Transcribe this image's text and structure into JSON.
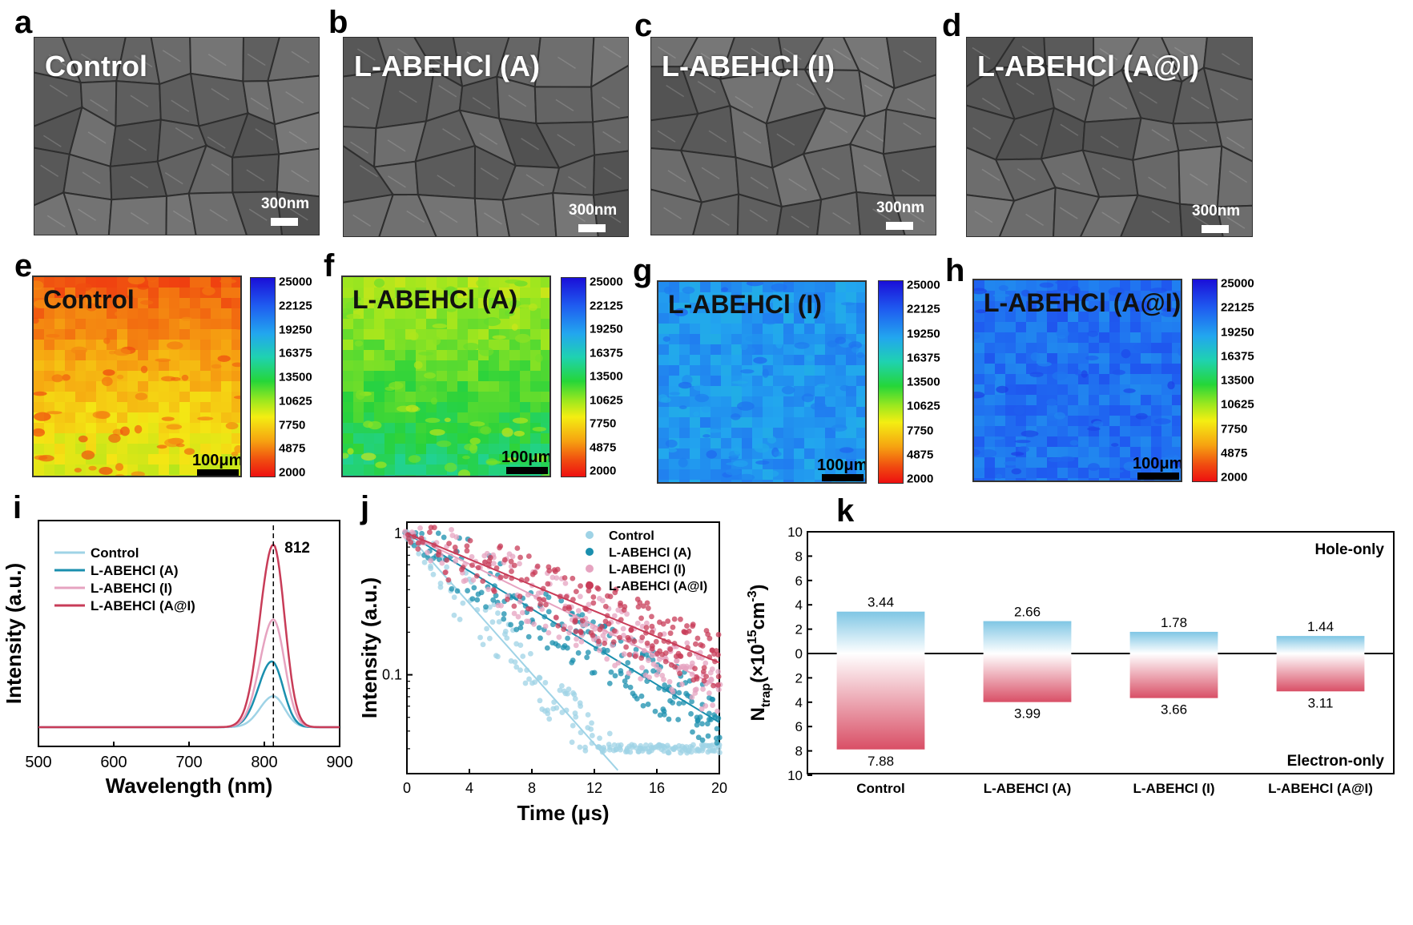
{
  "panel_letters": [
    "a",
    "b",
    "c",
    "d",
    "e",
    "f",
    "g",
    "h",
    "i",
    "j",
    "k"
  ],
  "sem": [
    {
      "title": "Control",
      "scale": "300nm"
    },
    {
      "title": "L-ABEHCl (A)",
      "scale": "300nm"
    },
    {
      "title": "L-ABEHCl (I)",
      "scale": "300nm"
    },
    {
      "title": "L-ABEHCl (A@I)",
      "scale": "300nm"
    }
  ],
  "pl_maps": [
    {
      "title": "Control",
      "scale": "100μm",
      "level": 0.12
    },
    {
      "title": "L-ABEHCl (A)",
      "scale": "100μm",
      "level": 0.42
    },
    {
      "title": "L-ABEHCl (I)",
      "scale": "100μm",
      "level": 0.8
    },
    {
      "title": "L-ABEHCl (A@I)",
      "scale": "100μm",
      "level": 0.86
    }
  ],
  "colorbar_ticks": [
    "25000",
    "22125",
    "19250",
    "16375",
    "13500",
    "10625",
    "7750",
    "4875",
    "2000"
  ],
  "colors": {
    "control": "#9fd3e6",
    "A": "#1a8fae",
    "I": "#e6a3c0",
    "AI": "#c83c58",
    "hole": "#7fc6e4",
    "electron": "#d94f66"
  },
  "chart_data": [
    {
      "type": "line",
      "panel": "i",
      "xlabel": "Wavelength (nm)",
      "ylabel": "Intensity (a.u.)",
      "xlim": [
        500,
        900
      ],
      "xticks": [
        500,
        600,
        700,
        800,
        900
      ],
      "annotation": "812",
      "series": [
        {
          "name": "Control",
          "peak": 812,
          "height": 0.17,
          "width": 28
        },
        {
          "name": "L-ABEHCl (A)",
          "peak": 810,
          "height": 0.36,
          "width": 28
        },
        {
          "name": "L-ABEHCl (I)",
          "peak": 812,
          "height": 0.59,
          "width": 28
        },
        {
          "name": "L-ABEHCl (A@I)",
          "peak": 812,
          "height": 1.0,
          "width": 28
        }
      ]
    },
    {
      "type": "scatter",
      "panel": "j",
      "xlabel": "Time (μs)",
      "ylabel": "Intensity (a.u.)",
      "xlim": [
        0,
        20
      ],
      "yscale": "log",
      "ylim": [
        0.02,
        1.2
      ],
      "xticks": [
        0,
        4,
        8,
        12,
        16,
        20
      ],
      "yticks": [
        {
          "v": 1,
          "label": "1"
        },
        {
          "v": 0.1,
          "label": "0.1"
        }
      ],
      "series": [
        {
          "name": "Control",
          "tau": 3.5
        },
        {
          "name": "L-ABEHCl (A)",
          "tau": 6.5
        },
        {
          "name": "L-ABEHCl (I)",
          "tau": 8.0
        },
        {
          "name": "L-ABEHCl (A@I)",
          "tau": 9.5
        }
      ]
    },
    {
      "type": "bar",
      "panel": "k",
      "ylabel_main": "N",
      "ylabel_sub": "trap",
      "ylabel_rest": "(×10",
      "ylabel_exp": "15",
      "ylabel_unit": "cm",
      "ylabel_unit_exp": "-3",
      "ylabel_close": ")",
      "categories": [
        "Control",
        "L-ABEHCl (A)",
        "L-ABEHCl (I)",
        "L-ABEHCl (A@I)"
      ],
      "series": [
        {
          "name": "Hole-only",
          "values": [
            3.44,
            2.66,
            1.78,
            1.44
          ],
          "labels": [
            "3.44",
            "2.66",
            "1.78",
            "1.44"
          ]
        },
        {
          "name": "Electron-only",
          "values": [
            7.88,
            3.99,
            3.66,
            3.11
          ],
          "labels": [
            "7.88",
            "3.99",
            "3.66",
            "3.11"
          ]
        }
      ],
      "yticks_top": [
        "10",
        "8",
        "6",
        "4",
        "2",
        "0"
      ],
      "yticks_bottom": [
        "2",
        "4",
        "6",
        "8",
        "10"
      ]
    }
  ]
}
